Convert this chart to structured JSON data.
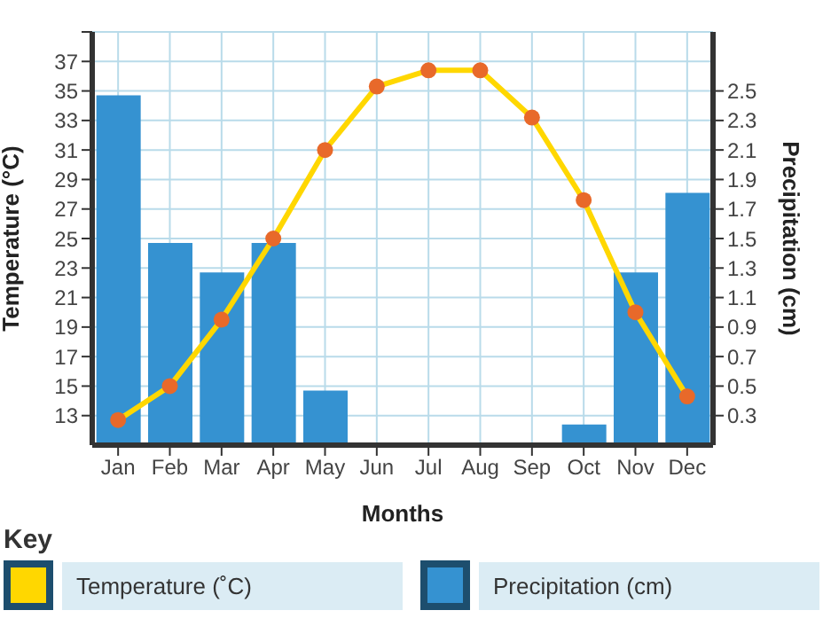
{
  "chart_data": {
    "type": "bar",
    "xlabel": "Months",
    "ylabel": "Temperature (°C)",
    "y2label": "Precipitation (cm)",
    "legend_title": "Key",
    "categories": [
      "Jan",
      "Feb",
      "Mar",
      "Apr",
      "May",
      "Jun",
      "Jul",
      "Aug",
      "Sep",
      "Oct",
      "Nov",
      "Dec"
    ],
    "series": [
      {
        "name": "Temperature (˚C)",
        "type": "line",
        "color": "#ffd700",
        "values": [
          12.7,
          15,
          19.5,
          25,
          31,
          35.3,
          36.4,
          36.4,
          33.2,
          27.6,
          20,
          14.3
        ]
      },
      {
        "name": "Precipitation (cm)",
        "axis": "y2",
        "color": "#3592d1",
        "values": [
          2.47,
          1.47,
          1.27,
          1.47,
          0.47,
          null,
          null,
          null,
          null,
          0.24,
          1.27,
          1.81
        ]
      }
    ],
    "ylim": [
      11,
      39
    ],
    "yticks": [
      13,
      15,
      17,
      19,
      21,
      23,
      25,
      27,
      29,
      31,
      33,
      35,
      37,
      {
        "value": 39,
        "label": null
      }
    ],
    "y2lim": [
      0.1,
      2.9
    ],
    "y2ticks": [
      0.3,
      0.5,
      0.7,
      0.9,
      1.1,
      1.3,
      1.5,
      1.7,
      1.9,
      2.1,
      2.3,
      2.5
    ],
    "grid": true,
    "legend": "bottom",
    "marker": "circle",
    "line_style": "solid"
  }
}
